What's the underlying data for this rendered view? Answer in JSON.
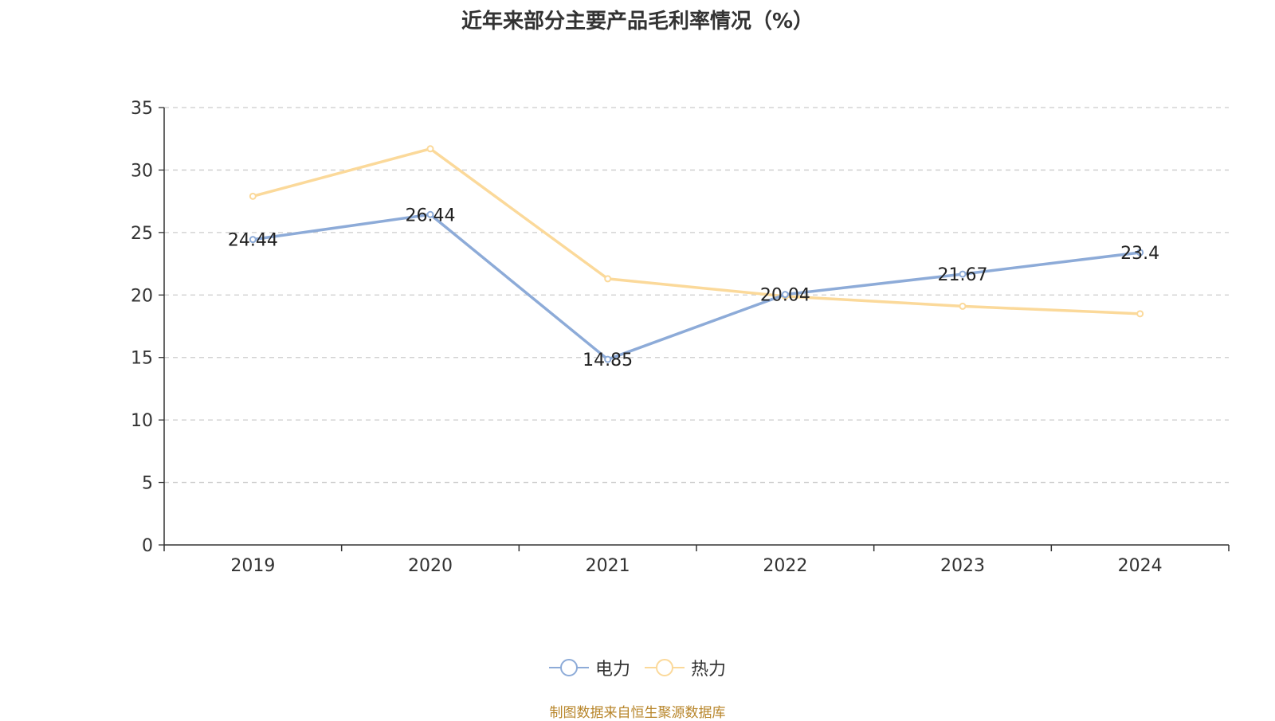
{
  "chart_data": {
    "type": "line",
    "title": "近年来部分主要产品毛利率情况（%）",
    "categories": [
      "2019",
      "2020",
      "2021",
      "2022",
      "2023",
      "2024"
    ],
    "ylim": [
      0,
      35
    ],
    "yticks": [
      0,
      5,
      10,
      15,
      20,
      25,
      30,
      35
    ],
    "grid": true,
    "legend_position": "bottom",
    "series": [
      {
        "name": "电力",
        "color": "#8dabd8",
        "values": [
          24.44,
          26.44,
          14.85,
          20.04,
          21.67,
          23.4
        ],
        "labels": [
          "24.44",
          "26.44",
          "14.85",
          "20.04",
          "21.67",
          "23.4"
        ]
      },
      {
        "name": "热力",
        "color": "#fbd99a",
        "values": [
          27.9,
          31.7,
          21.3,
          19.9,
          19.1,
          18.5
        ]
      }
    ]
  },
  "footer": {
    "source": "制图数据来自恒生聚源数据库"
  }
}
